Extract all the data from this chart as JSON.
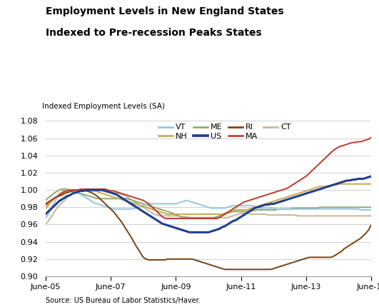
{
  "title_line1": "Employment Levels in New England States",
  "title_line2": "Indexed to Pre-recession Peaks States",
  "ylabel": "Indexed Employment Levels (SA)",
  "source": "Source: US Bureau of Labor Statistics/Haver.",
  "ylim": [
    0.9,
    1.085
  ],
  "yticks": [
    0.9,
    0.92,
    0.94,
    0.96,
    0.98,
    1.0,
    1.02,
    1.04,
    1.06,
    1.08
  ],
  "xtick_positions": [
    0,
    24,
    48,
    72,
    96,
    120
  ],
  "xtick_labels": [
    "June-05",
    "June-07",
    "June-09",
    "June-11",
    "June-13",
    "June-15"
  ],
  "series": {
    "VT": {
      "color": "#93c6df",
      "linewidth": 1.4,
      "data": [
        0.967,
        0.972,
        0.978,
        0.984,
        0.99,
        0.995,
        0.998,
        1.0,
        1.0,
        0.999,
        0.998,
        0.997,
        0.996,
        0.995,
        0.993,
        0.991,
        0.989,
        0.987,
        0.985,
        0.984,
        0.983,
        0.982,
        0.981,
        0.98,
        0.979,
        0.978,
        0.978,
        0.978,
        0.978,
        0.978,
        0.978,
        0.978,
        0.978,
        0.979,
        0.98,
        0.981,
        0.982,
        0.983,
        0.984,
        0.984,
        0.984,
        0.984,
        0.984,
        0.984,
        0.984,
        0.984,
        0.984,
        0.984,
        0.984,
        0.985,
        0.986,
        0.987,
        0.988,
        0.987,
        0.986,
        0.985,
        0.984,
        0.983,
        0.982,
        0.981,
        0.98,
        0.979,
        0.979,
        0.979,
        0.979,
        0.979,
        0.979,
        0.98,
        0.981,
        0.982,
        0.982,
        0.982,
        0.982,
        0.982,
        0.982,
        0.982,
        0.982,
        0.981,
        0.98,
        0.979,
        0.979,
        0.979,
        0.979,
        0.979,
        0.979,
        0.978,
        0.978,
        0.978,
        0.978,
        0.978,
        0.978,
        0.978,
        0.978,
        0.978,
        0.978,
        0.978,
        0.978,
        0.978,
        0.978,
        0.978,
        0.978,
        0.978,
        0.978,
        0.978,
        0.978,
        0.978,
        0.978,
        0.978,
        0.978,
        0.978,
        0.978,
        0.978,
        0.978,
        0.978,
        0.978,
        0.978,
        0.977,
        0.977,
        0.977,
        0.977,
        0.977
      ]
    },
    "NH": {
      "color": "#c9a84c",
      "linewidth": 1.4,
      "data": [
        0.978,
        0.982,
        0.986,
        0.989,
        0.992,
        0.995,
        0.997,
        0.999,
        1.0,
        1.0,
        1.0,
        0.999,
        0.999,
        0.999,
        0.999,
        0.999,
        0.999,
        0.999,
        0.999,
        0.998,
        0.997,
        0.996,
        0.995,
        0.994,
        0.993,
        0.992,
        0.991,
        0.99,
        0.989,
        0.988,
        0.987,
        0.986,
        0.985,
        0.984,
        0.983,
        0.982,
        0.981,
        0.98,
        0.979,
        0.978,
        0.977,
        0.976,
        0.975,
        0.974,
        0.973,
        0.972,
        0.972,
        0.972,
        0.972,
        0.972,
        0.972,
        0.972,
        0.972,
        0.972,
        0.972,
        0.972,
        0.972,
        0.972,
        0.972,
        0.972,
        0.972,
        0.972,
        0.972,
        0.972,
        0.972,
        0.972,
        0.973,
        0.974,
        0.975,
        0.976,
        0.977,
        0.977,
        0.977,
        0.977,
        0.977,
        0.978,
        0.979,
        0.98,
        0.981,
        0.982,
        0.983,
        0.984,
        0.985,
        0.986,
        0.987,
        0.988,
        0.989,
        0.99,
        0.991,
        0.992,
        0.993,
        0.994,
        0.995,
        0.996,
        0.997,
        0.998,
        0.999,
        1.0,
        1.001,
        1.002,
        1.003,
        1.004,
        1.004,
        1.004,
        1.005,
        1.005,
        1.006,
        1.006,
        1.007,
        1.007,
        1.007,
        1.007,
        1.007,
        1.007,
        1.007,
        1.007,
        1.007,
        1.007,
        1.007,
        1.007,
        1.007
      ]
    },
    "ME": {
      "color": "#8aac6e",
      "linewidth": 1.4,
      "data": [
        0.988,
        0.991,
        0.993,
        0.996,
        0.998,
        1.0,
        1.001,
        1.001,
        1.001,
        1.0,
        0.999,
        0.998,
        0.997,
        0.996,
        0.995,
        0.994,
        0.993,
        0.992,
        0.991,
        0.99,
        0.99,
        0.99,
        0.99,
        0.99,
        0.99,
        0.99,
        0.99,
        0.99,
        0.99,
        0.99,
        0.99,
        0.989,
        0.988,
        0.987,
        0.986,
        0.985,
        0.984,
        0.983,
        0.982,
        0.981,
        0.98,
        0.979,
        0.978,
        0.977,
        0.976,
        0.975,
        0.974,
        0.973,
        0.971,
        0.97,
        0.969,
        0.968,
        0.968,
        0.968,
        0.968,
        0.968,
        0.968,
        0.968,
        0.968,
        0.968,
        0.968,
        0.968,
        0.968,
        0.969,
        0.97,
        0.971,
        0.972,
        0.973,
        0.974,
        0.975,
        0.975,
        0.975,
        0.975,
        0.975,
        0.975,
        0.976,
        0.976,
        0.976,
        0.977,
        0.977,
        0.977,
        0.977,
        0.977,
        0.977,
        0.977,
        0.977,
        0.978,
        0.978,
        0.978,
        0.978,
        0.978,
        0.979,
        0.979,
        0.979,
        0.979,
        0.979,
        0.979,
        0.979,
        0.979,
        0.979,
        0.979,
        0.98,
        0.98,
        0.98,
        0.98,
        0.98,
        0.98,
        0.98,
        0.98,
        0.98,
        0.98,
        0.98,
        0.98,
        0.98,
        0.98,
        0.98,
        0.98,
        0.98,
        0.98,
        0.98,
        0.98
      ]
    },
    "US": {
      "color": "#1f3f8f",
      "linewidth": 2.2,
      "data": [
        0.972,
        0.975,
        0.978,
        0.981,
        0.984,
        0.987,
        0.989,
        0.991,
        0.993,
        0.994,
        0.996,
        0.997,
        0.998,
        0.999,
        0.999,
        1.0,
        1.0,
        1.0,
        1.0,
        1.0,
        1.0,
        1.0,
        0.999,
        0.998,
        0.997,
        0.996,
        0.995,
        0.993,
        0.991,
        0.989,
        0.987,
        0.985,
        0.983,
        0.981,
        0.979,
        0.977,
        0.975,
        0.973,
        0.971,
        0.969,
        0.967,
        0.965,
        0.963,
        0.961,
        0.96,
        0.959,
        0.958,
        0.957,
        0.956,
        0.955,
        0.954,
        0.953,
        0.952,
        0.951,
        0.951,
        0.951,
        0.951,
        0.951,
        0.951,
        0.951,
        0.951,
        0.952,
        0.953,
        0.954,
        0.955,
        0.957,
        0.958,
        0.96,
        0.962,
        0.964,
        0.965,
        0.967,
        0.969,
        0.971,
        0.973,
        0.975,
        0.977,
        0.979,
        0.98,
        0.981,
        0.982,
        0.983,
        0.983,
        0.984,
        0.984,
        0.985,
        0.986,
        0.987,
        0.988,
        0.989,
        0.99,
        0.991,
        0.992,
        0.993,
        0.994,
        0.995,
        0.996,
        0.997,
        0.998,
        0.999,
        1.0,
        1.001,
        1.002,
        1.003,
        1.004,
        1.005,
        1.006,
        1.007,
        1.008,
        1.009,
        1.01,
        1.011,
        1.011,
        1.012,
        1.012,
        1.013,
        1.013,
        1.013,
        1.014,
        1.015,
        1.016
      ]
    },
    "RI": {
      "color": "#7b4011",
      "linewidth": 1.4,
      "data": [
        0.984,
        0.986,
        0.988,
        0.99,
        0.992,
        0.993,
        0.994,
        0.996,
        0.997,
        0.998,
        0.999,
        1.0,
        1.0,
        1.0,
        1.0,
        0.999,
        0.998,
        0.997,
        0.995,
        0.993,
        0.99,
        0.987,
        0.984,
        0.981,
        0.978,
        0.975,
        0.971,
        0.967,
        0.963,
        0.958,
        0.953,
        0.948,
        0.943,
        0.937,
        0.932,
        0.927,
        0.922,
        0.92,
        0.919,
        0.919,
        0.919,
        0.919,
        0.919,
        0.919,
        0.919,
        0.92,
        0.92,
        0.92,
        0.92,
        0.92,
        0.92,
        0.92,
        0.92,
        0.92,
        0.92,
        0.919,
        0.918,
        0.917,
        0.916,
        0.915,
        0.914,
        0.913,
        0.912,
        0.911,
        0.91,
        0.909,
        0.908,
        0.908,
        0.908,
        0.908,
        0.908,
        0.908,
        0.908,
        0.908,
        0.908,
        0.908,
        0.908,
        0.908,
        0.908,
        0.908,
        0.908,
        0.908,
        0.908,
        0.908,
        0.909,
        0.91,
        0.911,
        0.912,
        0.913,
        0.914,
        0.915,
        0.916,
        0.917,
        0.918,
        0.919,
        0.92,
        0.921,
        0.922,
        0.922,
        0.922,
        0.922,
        0.922,
        0.922,
        0.922,
        0.922,
        0.922,
        0.923,
        0.925,
        0.927,
        0.929,
        0.932,
        0.934,
        0.936,
        0.938,
        0.94,
        0.942,
        0.944,
        0.947,
        0.95,
        0.954,
        0.96
      ]
    },
    "MA": {
      "color": "#c0392b",
      "linewidth": 1.4,
      "data": [
        0.982,
        0.985,
        0.988,
        0.99,
        0.992,
        0.994,
        0.996,
        0.998,
        0.999,
        1.0,
        1.0,
        1.0,
        1.0,
        1.001,
        1.001,
        1.001,
        1.001,
        1.001,
        1.001,
        1.001,
        1.001,
        1.001,
        1.001,
        1.0,
        0.999,
        0.999,
        0.998,
        0.997,
        0.996,
        0.995,
        0.994,
        0.993,
        0.992,
        0.991,
        0.99,
        0.989,
        0.988,
        0.986,
        0.984,
        0.981,
        0.978,
        0.975,
        0.972,
        0.969,
        0.967,
        0.967,
        0.967,
        0.967,
        0.967,
        0.967,
        0.967,
        0.967,
        0.967,
        0.967,
        0.967,
        0.967,
        0.967,
        0.967,
        0.967,
        0.967,
        0.967,
        0.967,
        0.967,
        0.967,
        0.968,
        0.97,
        0.972,
        0.974,
        0.976,
        0.978,
        0.98,
        0.982,
        0.984,
        0.986,
        0.987,
        0.988,
        0.989,
        0.99,
        0.991,
        0.992,
        0.993,
        0.994,
        0.995,
        0.996,
        0.997,
        0.998,
        0.999,
        1.0,
        1.001,
        1.002,
        1.004,
        1.006,
        1.008,
        1.01,
        1.012,
        1.014,
        1.016,
        1.019,
        1.022,
        1.025,
        1.028,
        1.031,
        1.034,
        1.037,
        1.04,
        1.043,
        1.046,
        1.048,
        1.05,
        1.051,
        1.052,
        1.053,
        1.054,
        1.055,
        1.055,
        1.056,
        1.056,
        1.057,
        1.058,
        1.059,
        1.061
      ]
    },
    "CT": {
      "color": "#c8b49a",
      "linewidth": 1.4,
      "data": [
        0.96,
        0.964,
        0.968,
        0.973,
        0.978,
        0.982,
        0.985,
        0.988,
        0.991,
        0.994,
        0.996,
        0.998,
        0.999,
        1.0,
        1.0,
        1.0,
        1.0,
        1.0,
        1.0,
        1.0,
        0.999,
        0.999,
        0.998,
        0.998,
        0.997,
        0.997,
        0.997,
        0.996,
        0.995,
        0.994,
        0.992,
        0.99,
        0.988,
        0.986,
        0.984,
        0.982,
        0.98,
        0.978,
        0.976,
        0.974,
        0.972,
        0.971,
        0.97,
        0.97,
        0.97,
        0.97,
        0.97,
        0.97,
        0.97,
        0.97,
        0.969,
        0.969,
        0.969,
        0.968,
        0.968,
        0.968,
        0.968,
        0.968,
        0.968,
        0.968,
        0.968,
        0.968,
        0.968,
        0.968,
        0.968,
        0.968,
        0.968,
        0.968,
        0.969,
        0.97,
        0.971,
        0.972,
        0.973,
        0.973,
        0.973,
        0.973,
        0.972,
        0.972,
        0.972,
        0.972,
        0.972,
        0.972,
        0.971,
        0.971,
        0.971,
        0.971,
        0.971,
        0.971,
        0.971,
        0.971,
        0.971,
        0.971,
        0.971,
        0.97,
        0.97,
        0.97,
        0.97,
        0.97,
        0.97,
        0.97,
        0.97,
        0.97,
        0.97,
        0.97,
        0.97,
        0.97,
        0.97,
        0.97,
        0.97,
        0.97,
        0.97,
        0.97,
        0.97,
        0.97,
        0.97,
        0.97,
        0.97,
        0.97,
        0.97,
        0.97,
        0.97
      ]
    }
  },
  "legend_row1": [
    "VT",
    "NH",
    "ME",
    "US"
  ],
  "legend_row2": [
    "RI",
    "MA",
    "CT"
  ],
  "background_color": "#ffffff"
}
